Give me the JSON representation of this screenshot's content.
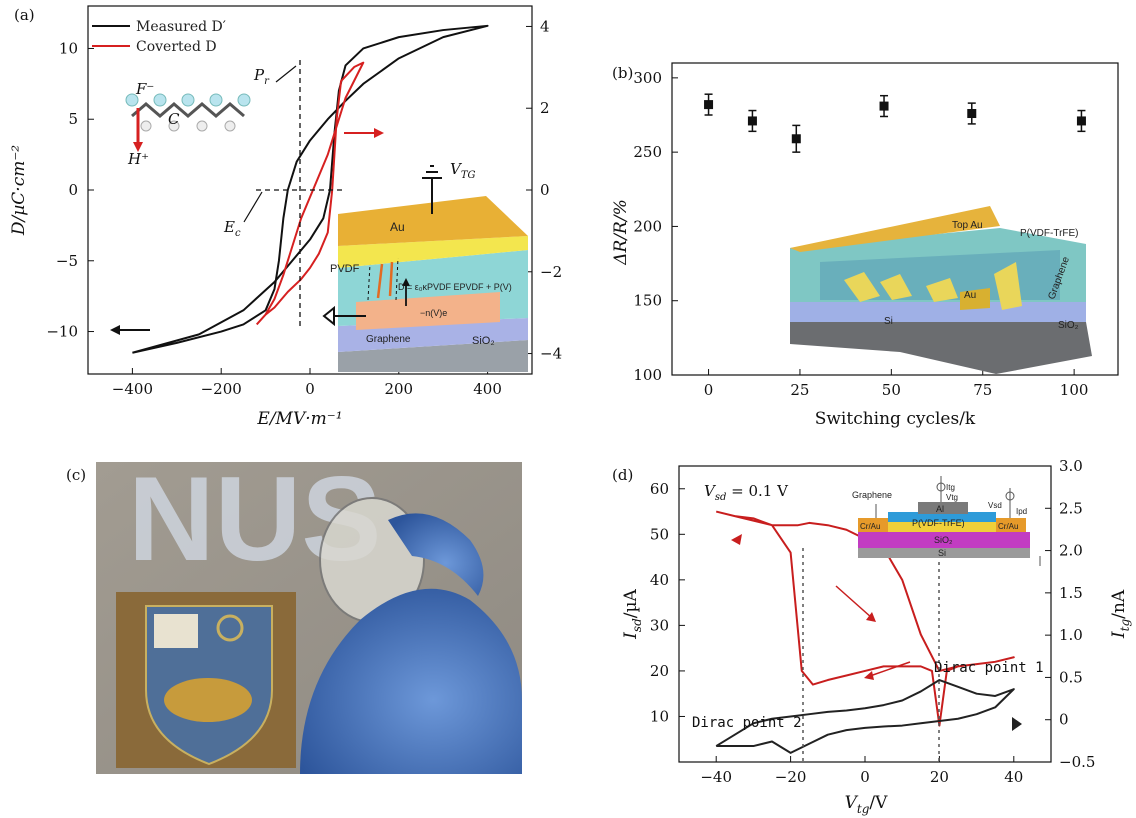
{
  "panels": {
    "a": {
      "label": "(a)"
    },
    "b": {
      "label": "(b)"
    },
    "c": {
      "label": "(c)"
    },
    "d": {
      "label": "(d)"
    }
  },
  "chart_data": [
    {
      "id": "a",
      "type": "line",
      "xlabel": "E/MV·m⁻¹",
      "ylabel_left": "D/µC·cm⁻²",
      "xlim": [
        -500,
        500
      ],
      "ylim_left": [
        -13,
        13
      ],
      "ylim_right": [
        -4.5,
        4.5
      ],
      "xticks": [
        -400,
        -200,
        0,
        200,
        400
      ],
      "yticks_left": [
        -10,
        -5,
        0,
        5,
        10
      ],
      "yticks_right": [
        -4,
        -2,
        0,
        2,
        4
      ],
      "legend": "top-left",
      "series": [
        {
          "name": "Measured D′",
          "color": "#111111",
          "x": [
            -400,
            -300,
            -200,
            -150,
            -100,
            -80,
            -70,
            -60,
            -50,
            -30,
            0,
            40,
            80,
            120,
            200,
            300,
            400,
            300,
            200,
            120,
            80,
            65,
            55,
            45,
            30,
            0,
            -40,
            -80,
            -150,
            -250,
            -400
          ],
          "y": [
            -11.5,
            -10.8,
            -10,
            -9.5,
            -8.5,
            -7,
            -5,
            -2,
            0,
            2,
            3.5,
            5,
            6.3,
            7.5,
            9.3,
            10.8,
            11.6,
            11.3,
            10.8,
            10,
            8.8,
            7,
            4,
            0,
            -2,
            -3.5,
            -5,
            -6.5,
            -8.5,
            -10.2,
            -11.5
          ]
        },
        {
          "name": "Coverted D",
          "color": "#d62020",
          "x": [
            -120,
            -100,
            -80,
            -60,
            -40,
            -20,
            0,
            20,
            40,
            60,
            80,
            120,
            100,
            70,
            60,
            50,
            40,
            20,
            0,
            -20,
            -50,
            -80,
            -100,
            -120
          ],
          "y": [
            -9.5,
            -8.8,
            -7.7,
            -6,
            -4,
            -2,
            -0.5,
            1,
            2.5,
            4.5,
            6.5,
            9,
            8.7,
            7.7,
            5,
            0,
            -3,
            -4.5,
            -5.5,
            -6.3,
            -7.2,
            -8.3,
            -8.8,
            -9.5
          ]
        }
      ],
      "annotations": {
        "pr": "P",
        "pr_sub": "r",
        "ec": "E",
        "ec_sub": "c",
        "vtg": "V",
        "vtg_sub": "TG",
        "f": "F⁻",
        "c": "C",
        "h": "H⁺",
        "au": "Au",
        "pvdf": "PVDF",
        "sio2": "SiO₂",
        "graphene": "Graphene",
        "eq1": "D = ε₀κPVDF EPVDF + P(V)",
        "eq2": "−n(V)e"
      }
    },
    {
      "id": "b",
      "type": "scatter",
      "xlabel": "Switching cycles/k",
      "ylabel": "ΔR/R/%",
      "xlim": [
        -10,
        112
      ],
      "ylim": [
        100,
        310
      ],
      "xticks": [
        0,
        25,
        50,
        75,
        100
      ],
      "yticks": [
        100,
        150,
        200,
        250,
        300
      ],
      "x": [
        0,
        12,
        24,
        48,
        72,
        102
      ],
      "y": [
        282,
        271,
        259,
        281,
        276,
        271
      ],
      "err": [
        7,
        7,
        9,
        7,
        7,
        7
      ],
      "inset_labels": [
        "Top Au",
        "P(VDF-TrFE)",
        "Au",
        "Graphene",
        "Si",
        "SiO₂"
      ]
    },
    {
      "id": "d",
      "type": "line",
      "xlabel": "V",
      "xlabel_sub": "tg",
      "xlabel_unit": "/V",
      "ylabel_left": "I",
      "ylabel_left_sub": "sd",
      "ylabel_left_unit": "/µA",
      "ylabel_right": "I",
      "ylabel_right_sub": "tg",
      "ylabel_right_unit": "/nA",
      "xlim": [
        -50,
        50
      ],
      "ylim_left": [
        0,
        65
      ],
      "ylim_right": [
        -0.5,
        3.0
      ],
      "xticks": [
        -40,
        -20,
        0,
        20,
        40
      ],
      "yticks_left": [
        10,
        20,
        30,
        40,
        50,
        60
      ],
      "yticks_right": [
        -0.5,
        0,
        0.5,
        1.0,
        1.5,
        2.0,
        2.5,
        3.0
      ],
      "note": "V",
      "note_sub": "sd",
      "note_rest": " = 0.1 V",
      "dirac1": "Dirac point 1",
      "dirac2": "Dirac point 2",
      "series": [
        {
          "name": "Isd",
          "color": "#c81e1e",
          "x": [
            -40,
            -35,
            -30,
            -25,
            -20,
            -17,
            -14,
            -10,
            -5,
            0,
            5,
            10,
            15,
            18,
            20,
            22,
            25,
            30,
            35,
            40,
            35,
            30,
            25,
            20,
            15,
            10,
            5,
            0,
            -5,
            -10,
            -15,
            -18,
            -20,
            -25,
            -30,
            -35,
            -40
          ],
          "y": [
            55,
            54,
            53.5,
            52,
            46,
            20,
            17,
            18,
            19,
            20,
            21,
            21,
            21,
            20,
            8,
            20,
            21,
            21.5,
            22,
            23,
            22,
            21.5,
            21,
            20,
            28,
            40,
            47,
            49,
            51,
            52,
            52.5,
            52,
            52,
            52,
            53,
            54,
            55
          ]
        },
        {
          "name": "Itg",
          "color": "#222222",
          "x": [
            -40,
            -35,
            -30,
            -25,
            -20,
            -15,
            -10,
            -5,
            0,
            5,
            10,
            15,
            20,
            25,
            30,
            35,
            40,
            35,
            30,
            25,
            20,
            15,
            10,
            5,
            0,
            -5,
            -10,
            -15,
            -20,
            -25,
            -30,
            -35,
            -40
          ],
          "y": [
            3.5,
            6,
            8.5,
            9.5,
            10,
            10.5,
            11,
            11.3,
            11.8,
            12.5,
            13.5,
            15.5,
            18,
            16.5,
            15,
            14.5,
            16,
            12,
            10.5,
            9.5,
            9,
            8.5,
            8,
            7.8,
            7.5,
            7,
            6,
            4,
            2,
            4.5,
            3.5,
            3.5,
            3.5
          ]
        }
      ],
      "inset_labels": {
        "graphene": "Graphene",
        "al": "Al",
        "pvdf": "P(VDF-TrFE)",
        "crau": "Cr/Au",
        "sio2": "SiO₂",
        "si": "Si",
        "vsd": "Vsd",
        "vtg": "Vtg",
        "itg": "Itg",
        "ipd": "Ipd"
      }
    }
  ],
  "photo": {
    "watermark": "NUS"
  },
  "colors": {
    "red": "#d62020",
    "black": "#111111",
    "inset_au": "#e8a830",
    "inset_pvdf": "#6ec6c6",
    "inset_sio2": "#a8b4e0",
    "photo_bg": "#a6a199",
    "glove": "#3c6cbb"
  }
}
